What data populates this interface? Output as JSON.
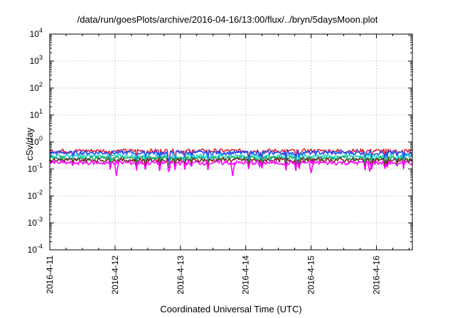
{
  "chart_data": {
    "type": "line",
    "title": "/data/run/goesPlots/archive/2016-04-16/13:00/flux/../bryn/5daysMoon.plot",
    "xlabel": "Coordinated Universal Time (UTC)",
    "ylabel": "cSv/day",
    "x_ticks": [
      "2016-4-11",
      "2016-4-12",
      "2016-4-13",
      "2016-4-14",
      "2016-4-15",
      "2016-4-16"
    ],
    "y_scale": "log",
    "y_ticks": [
      {
        "base": "10",
        "exp": "-4"
      },
      {
        "base": "10",
        "exp": "-3"
      },
      {
        "base": "10",
        "exp": "-2"
      },
      {
        "base": "10",
        "exp": "-1"
      },
      {
        "base": "10",
        "exp": "0"
      },
      {
        "base": "10",
        "exp": "1"
      },
      {
        "base": "10",
        "exp": "2"
      },
      {
        "base": "10",
        "exp": "3"
      },
      {
        "base": "10",
        "exp": "4"
      }
    ],
    "ylim": [
      0.0001,
      10000
    ],
    "xlim_days": [
      0,
      5.55
    ],
    "grid": true,
    "series": [
      {
        "color": "#e0203a",
        "level": 0.47
      },
      {
        "color": "#1a4fff",
        "level": 0.4
      },
      {
        "color": "#1fd0d0",
        "level": 0.3
      },
      {
        "color": "#10b060",
        "level": 0.25
      },
      {
        "color": "#7a2a2a",
        "level": 0.215
      },
      {
        "color": "#ff00ff",
        "level": 0.17
      }
    ]
  }
}
